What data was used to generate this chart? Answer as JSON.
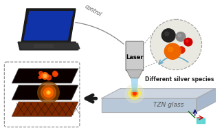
{
  "bg_color": "#ffffff",
  "glass_label": "TZN glass",
  "control_label": "control",
  "laser_label": "Laser",
  "silver_label": "Different silver species",
  "figsize": [
    3.26,
    1.89
  ],
  "dpi": 100
}
